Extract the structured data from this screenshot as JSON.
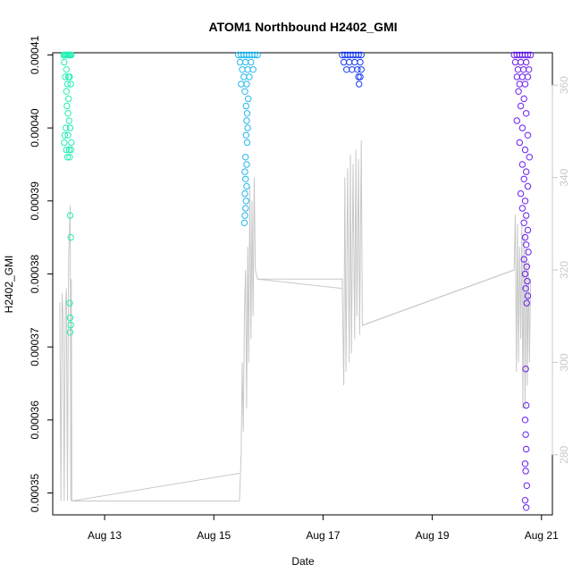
{
  "chart_data": {
    "type": "scatter",
    "title": "ATOM1 Northbound H2402_GMI",
    "xlabel": "Date",
    "ylabel": "H2402_GMI",
    "x_ticks": [
      "Aug 13",
      "Aug 15",
      "Aug 17",
      "Aug 19",
      "Aug 21"
    ],
    "y_ticks": [
      "0.00035",
      "0.00036",
      "0.00037",
      "0.00038",
      "0.00039",
      "0.00040",
      "0.00041"
    ],
    "y2_ticks": [
      "280",
      "300",
      "320",
      "340",
      "360"
    ],
    "xlim_days": [
      12.05,
      21.2
    ],
    "ylim": [
      0.000347,
      0.0004103
    ],
    "y2lim": [
      267,
      367
    ],
    "colors": {
      "series_colors": [
        "#22f0b4",
        "#22b8f0",
        "#1a3cf0",
        "#6a1ef0"
      ],
      "secondary_line": "#c8c8c8",
      "axis": "#000000",
      "right_axis": "#c8c8c8"
    },
    "series": [
      {
        "color": "#22f0b4",
        "points": [
          [
            12.25,
            0.00041
          ],
          [
            12.27,
            0.00041
          ],
          [
            12.29,
            0.00041
          ],
          [
            12.31,
            0.00041
          ],
          [
            12.33,
            0.00041
          ],
          [
            12.35,
            0.00041
          ],
          [
            12.37,
            0.00041
          ],
          [
            12.39,
            0.00041
          ],
          [
            12.26,
            0.000409
          ],
          [
            12.3,
            0.000408
          ],
          [
            12.34,
            0.000407
          ],
          [
            12.28,
            0.000407
          ],
          [
            12.36,
            0.000407
          ],
          [
            12.32,
            0.000406
          ],
          [
            12.38,
            0.000406
          ],
          [
            12.3,
            0.000405
          ],
          [
            12.34,
            0.000404
          ],
          [
            12.31,
            0.000403
          ],
          [
            12.33,
            0.000402
          ],
          [
            12.35,
            0.000401
          ],
          [
            12.29,
            0.0004
          ],
          [
            12.37,
            0.0004
          ],
          [
            12.27,
            0.000399
          ],
          [
            12.33,
            0.000399
          ],
          [
            12.39,
            0.000398
          ],
          [
            12.26,
            0.000398
          ],
          [
            12.35,
            0.000397
          ],
          [
            12.3,
            0.000397
          ],
          [
            12.38,
            0.000397
          ],
          [
            12.32,
            0.000396
          ],
          [
            12.36,
            0.000396
          ],
          [
            12.37,
            0.000388
          ],
          [
            12.38,
            0.000385
          ],
          [
            12.36,
            0.000376
          ],
          [
            12.37,
            0.000374
          ],
          [
            12.38,
            0.000373
          ],
          [
            12.37,
            0.000372
          ]
        ]
      },
      {
        "color": "#22b8f0",
        "points": [
          [
            15.45,
            0.00041
          ],
          [
            15.5,
            0.00041
          ],
          [
            15.55,
            0.00041
          ],
          [
            15.6,
            0.00041
          ],
          [
            15.65,
            0.00041
          ],
          [
            15.7,
            0.00041
          ],
          [
            15.75,
            0.00041
          ],
          [
            15.8,
            0.00041
          ],
          [
            15.48,
            0.000409
          ],
          [
            15.58,
            0.000409
          ],
          [
            15.68,
            0.000409
          ],
          [
            15.52,
            0.000408
          ],
          [
            15.62,
            0.000408
          ],
          [
            15.72,
            0.000408
          ],
          [
            15.55,
            0.000407
          ],
          [
            15.65,
            0.000407
          ],
          [
            15.5,
            0.000406
          ],
          [
            15.6,
            0.000406
          ],
          [
            15.57,
            0.000405
          ],
          [
            15.63,
            0.000404
          ],
          [
            15.59,
            0.000403
          ],
          [
            15.61,
            0.000402
          ],
          [
            15.6,
            0.000401
          ],
          [
            15.62,
            0.0004
          ],
          [
            15.59,
            0.000399
          ],
          [
            15.61,
            0.000398
          ],
          [
            15.58,
            0.000396
          ],
          [
            15.6,
            0.000395
          ],
          [
            15.57,
            0.000394
          ],
          [
            15.58,
            0.000393
          ],
          [
            15.6,
            0.000392
          ],
          [
            15.57,
            0.000391
          ],
          [
            15.59,
            0.00039
          ],
          [
            15.58,
            0.000389
          ],
          [
            15.57,
            0.000388
          ],
          [
            15.56,
            0.000387
          ]
        ]
      },
      {
        "color": "#1a3cf0",
        "points": [
          [
            17.35,
            0.00041
          ],
          [
            17.4,
            0.00041
          ],
          [
            17.45,
            0.00041
          ],
          [
            17.5,
            0.00041
          ],
          [
            17.55,
            0.00041
          ],
          [
            17.6,
            0.00041
          ],
          [
            17.65,
            0.00041
          ],
          [
            17.7,
            0.00041
          ],
          [
            17.38,
            0.000409
          ],
          [
            17.48,
            0.000409
          ],
          [
            17.58,
            0.000409
          ],
          [
            17.68,
            0.000409
          ],
          [
            17.43,
            0.000408
          ],
          [
            17.53,
            0.000408
          ],
          [
            17.63,
            0.000408
          ],
          [
            17.7,
            0.000408
          ],
          [
            17.65,
            0.000407
          ],
          [
            17.68,
            0.000407
          ],
          [
            17.66,
            0.000406
          ]
        ]
      },
      {
        "color": "#6a1ef0",
        "points": [
          [
            20.5,
            0.00041
          ],
          [
            20.55,
            0.00041
          ],
          [
            20.6,
            0.00041
          ],
          [
            20.65,
            0.00041
          ],
          [
            20.7,
            0.00041
          ],
          [
            20.75,
            0.00041
          ],
          [
            20.8,
            0.00041
          ],
          [
            20.52,
            0.000409
          ],
          [
            20.62,
            0.000409
          ],
          [
            20.72,
            0.000409
          ],
          [
            20.57,
            0.000408
          ],
          [
            20.67,
            0.000408
          ],
          [
            20.77,
            0.000408
          ],
          [
            20.55,
            0.000407
          ],
          [
            20.65,
            0.000407
          ],
          [
            20.75,
            0.000407
          ],
          [
            20.6,
            0.000406
          ],
          [
            20.7,
            0.000406
          ],
          [
            20.58,
            0.000405
          ],
          [
            20.68,
            0.000404
          ],
          [
            20.62,
            0.000403
          ],
          [
            20.72,
            0.000402
          ],
          [
            20.55,
            0.000401
          ],
          [
            20.65,
            0.0004
          ],
          [
            20.75,
            0.000399
          ],
          [
            20.6,
            0.000398
          ],
          [
            20.7,
            0.000397
          ],
          [
            20.78,
            0.000396
          ],
          [
            20.65,
            0.000395
          ],
          [
            20.72,
            0.000394
          ],
          [
            20.68,
            0.000393
          ],
          [
            20.75,
            0.000392
          ],
          [
            20.62,
            0.000391
          ],
          [
            20.7,
            0.00039
          ],
          [
            20.65,
            0.000389
          ],
          [
            20.72,
            0.000388
          ],
          [
            20.68,
            0.000387
          ],
          [
            20.75,
            0.000386
          ],
          [
            20.7,
            0.000385
          ],
          [
            20.72,
            0.000384
          ],
          [
            20.76,
            0.000383
          ],
          [
            20.68,
            0.000382
          ],
          [
            20.73,
            0.000381
          ],
          [
            20.7,
            0.00038
          ],
          [
            20.74,
            0.000379
          ],
          [
            20.71,
            0.000378
          ],
          [
            20.75,
            0.000377
          ],
          [
            20.73,
            0.000376
          ],
          [
            20.71,
            0.000367
          ],
          [
            20.72,
            0.000362
          ],
          [
            20.7,
            0.00036
          ],
          [
            20.71,
            0.000358
          ],
          [
            20.72,
            0.000356
          ],
          [
            20.7,
            0.000354
          ],
          [
            20.71,
            0.000353
          ],
          [
            20.73,
            0.000351
          ],
          [
            20.7,
            0.000349
          ],
          [
            20.72,
            0.000348
          ]
        ]
      }
    ],
    "secondary_series": [
      [
        12.18,
        313
      ],
      [
        12.2,
        270
      ],
      [
        12.22,
        315
      ],
      [
        12.24,
        310
      ],
      [
        12.26,
        270
      ],
      [
        12.28,
        312
      ],
      [
        12.3,
        316
      ],
      [
        12.32,
        270
      ],
      [
        12.34,
        322
      ],
      [
        12.36,
        330
      ],
      [
        12.37,
        334
      ],
      [
        12.38,
        270
      ],
      [
        12.39,
        318
      ],
      [
        12.4,
        270
      ],
      [
        15.47,
        270
      ],
      [
        15.5,
        280
      ],
      [
        15.52,
        300
      ],
      [
        15.54,
        285
      ],
      [
        15.56,
        310
      ],
      [
        15.58,
        320
      ],
      [
        15.6,
        290
      ],
      [
        15.62,
        325
      ],
      [
        15.64,
        300
      ],
      [
        15.66,
        338
      ],
      [
        15.68,
        305
      ],
      [
        15.7,
        335
      ],
      [
        15.72,
        310
      ],
      [
        15.74,
        340
      ],
      [
        15.76,
        320
      ],
      [
        15.8,
        318
      ],
      [
        17.35,
        318
      ],
      [
        17.38,
        295
      ],
      [
        17.4,
        340
      ],
      [
        17.42,
        298
      ],
      [
        17.45,
        342
      ],
      [
        17.48,
        300
      ],
      [
        17.5,
        345
      ],
      [
        17.52,
        302
      ],
      [
        17.55,
        343
      ],
      [
        17.58,
        305
      ],
      [
        17.6,
        346
      ],
      [
        17.62,
        310
      ],
      [
        17.65,
        344
      ],
      [
        17.67,
        306
      ],
      [
        17.7,
        348
      ],
      [
        17.72,
        308
      ],
      [
        20.5,
        320
      ],
      [
        20.52,
        332
      ],
      [
        20.54,
        298
      ],
      [
        20.56,
        330
      ],
      [
        20.58,
        300
      ],
      [
        20.6,
        325
      ],
      [
        20.62,
        305
      ],
      [
        20.64,
        330
      ],
      [
        20.66,
        290
      ],
      [
        20.68,
        328
      ],
      [
        20.7,
        290
      ],
      [
        20.72,
        325
      ],
      [
        20.74,
        295
      ],
      [
        20.76,
        322
      ],
      [
        20.78,
        300
      ],
      [
        20.8,
        318
      ]
    ],
    "secondary_connectors": [
      [
        12.4,
        270
      ],
      [
        15.47,
        276
      ],
      [
        15.8,
        318
      ],
      [
        17.35,
        316
      ],
      [
        17.72,
        308
      ],
      [
        20.5,
        320
      ]
    ]
  }
}
